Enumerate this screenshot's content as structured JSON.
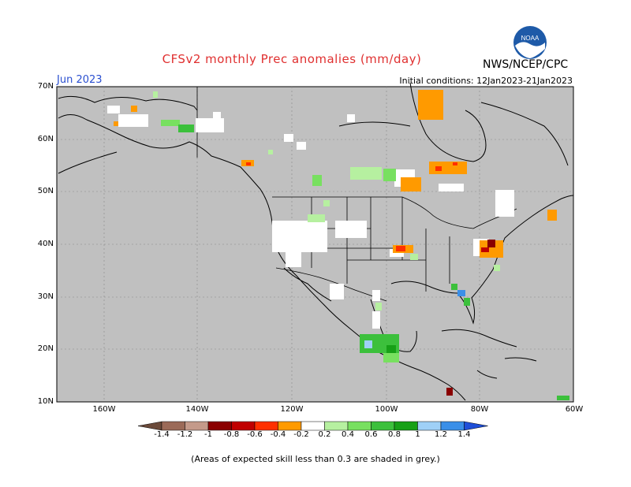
{
  "header": {
    "title": "CFSv2 monthly Prec anomalies (mm/day)",
    "org": "NWS/NCEP/CPC",
    "month": "Jun 2023",
    "init": "Initial conditions: 12Jan2023-21Jan2023",
    "logo_text": "NOAA"
  },
  "map": {
    "lat_labels": [
      "70N",
      "60N",
      "50N",
      "40N",
      "30N",
      "20N",
      "10N"
    ],
    "lon_labels": [
      "160W",
      "140W",
      "120W",
      "100W",
      "80W",
      "60W"
    ],
    "background_color": "#c0c0c0",
    "skill_mask_note": "grey = expected skill < 0.3"
  },
  "colorbar": {
    "tick_labels": [
      "-1.4",
      "-1.2",
      "-1",
      "-0.8",
      "-0.6",
      "-0.4",
      "-0.2",
      "0.2",
      "0.4",
      "0.6",
      "0.8",
      "1",
      "1.2",
      "1.4"
    ],
    "colors": [
      "#6b4a3a",
      "#9b6a58",
      "#c49a8a",
      "#8a0000",
      "#c00000",
      "#ff3000",
      "#ff9a00",
      "#ffffff",
      "#b6f0a0",
      "#78e060",
      "#3cc03c",
      "#17a017",
      "#9fd0f7",
      "#3a8fe8",
      "#1f4fd8"
    ]
  },
  "footer": {
    "note": "(Areas of expected skill less than 0.3 are shaded in grey.)"
  }
}
